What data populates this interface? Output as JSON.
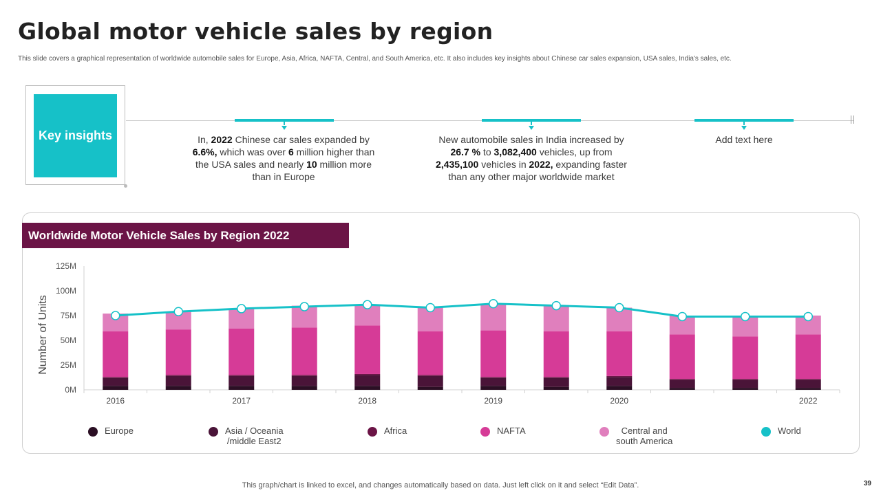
{
  "slide": {
    "title": "Global motor vehicle sales by region",
    "subtitle": "This slide covers a graphical representation of worldwide automobile sales for Europe, Asia, Africa, NAFTA, Central, and South America, etc. It also includes key insights about Chinese car sales expansion, USA sales, India's sales, etc.",
    "page_number": "39",
    "footer_note": "This graph/chart is linked to excel, and changes automatically based on data. Just left click on it and select “Edit Data”."
  },
  "insights": {
    "label": "Key insights",
    "item1": {
      "t1": "In, ",
      "b1": "2022",
      "t2": " Chinese car sales expanded by ",
      "b2": "6.6%,",
      "t3": " which was over ",
      "b3": "6",
      "t4": " million higher than the USA sales and nearly ",
      "b4": "10",
      "t5": " million more than in Europe"
    },
    "item2": {
      "t1": "New automobile sales in India increased by ",
      "b1": "26.7 %",
      "t2": " to ",
      "b2": "3,082,400",
      "t3": " vehicles, up from ",
      "b3": "2,435,100",
      "t4": " vehicles in ",
      "b4": "2022,",
      "t5": " expanding faster than any other major worldwide market"
    },
    "item3": {
      "text": "Add text here"
    }
  },
  "chart_header": "Worldwide Motor Vehicle Sales by Region 2022",
  "legend": [
    {
      "label": "Europe",
      "color": "#2b0f24"
    },
    {
      "label": "Asia / Oceania\n/middle East2",
      "color": "#4a1438"
    },
    {
      "label": "Africa",
      "color": "#6b1446"
    },
    {
      "label": "NAFTA",
      "color": "#d63b97"
    },
    {
      "label": "Central and\nsouth America",
      "color": "#e07fbd"
    },
    {
      "label": "World",
      "color": "#16c1c8"
    }
  ],
  "chart_data": {
    "type": "bar",
    "stacked": true,
    "ylabel": "Number  of Units",
    "yticks": [
      "0M",
      "25M",
      "50M",
      "75M",
      "100M",
      "125M"
    ],
    "ylim": [
      0,
      125
    ],
    "x_tick_labels": [
      "2016",
      "",
      "2017",
      "",
      "2018",
      "",
      "2019",
      "",
      "2020",
      "",
      "",
      "2022"
    ],
    "series": [
      {
        "name": "Europe",
        "color": "#2b0f24",
        "values": [
          4,
          4,
          4,
          4,
          4,
          3,
          4,
          3,
          4,
          2,
          2,
          2
        ]
      },
      {
        "name": "Asia / Oceania /middle East2",
        "color": "#4a1438",
        "values": [
          8,
          10,
          10,
          10,
          11,
          11,
          8,
          9,
          9,
          8,
          8,
          8
        ]
      },
      {
        "name": "Africa",
        "color": "#6b1446",
        "values": [
          1,
          1,
          1,
          1,
          1,
          1,
          1,
          1,
          1,
          1,
          1,
          1
        ]
      },
      {
        "name": "NAFTA",
        "color": "#d63b97",
        "values": [
          46,
          46,
          47,
          48,
          49,
          44,
          47,
          46,
          45,
          45,
          43,
          45
        ]
      },
      {
        "name": "Central and south America",
        "color": "#e07fbd",
        "values": [
          18,
          18,
          20,
          22,
          21,
          24,
          26,
          26,
          24,
          19,
          20,
          19
        ]
      }
    ],
    "line": {
      "name": "World",
      "color": "#16c1c8",
      "values": [
        75,
        79,
        82,
        84,
        86,
        83,
        87,
        85,
        83,
        74,
        74,
        74
      ]
    }
  }
}
